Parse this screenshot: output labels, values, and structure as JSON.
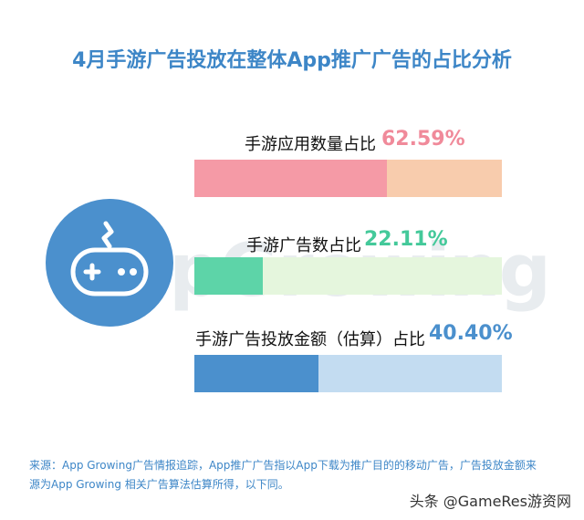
{
  "title": "4月手游广告投放在整体App推广广告的占比分析",
  "watermark": "AppGrowing",
  "colors": {
    "title": "#3d86c7",
    "icon": "#4b90cd"
  },
  "chart_data": {
    "type": "bar",
    "orientation": "horizontal",
    "xlim": [
      0,
      100
    ],
    "items": [
      {
        "label": "手游应用数量占比",
        "value": 62.59,
        "value_text": "62.59%",
        "fill": "#f59aa6",
        "track": "#f8ccad",
        "value_color": "#f08a9a"
      },
      {
        "label": "手游广告数占比",
        "value": 22.11,
        "value_text": "22.11%",
        "fill": "#5dd4a8",
        "track": "#e5f6dd",
        "value_color": "#44c99a"
      },
      {
        "label": "手游广告投放金额（估算）占比",
        "value": 40.4,
        "value_text": "40.40%",
        "fill": "#4b90cd",
        "track": "#c3dcf1",
        "value_color": "#4b90cd"
      }
    ]
  },
  "icon": {
    "name": "gamepad-icon"
  },
  "footnote": {
    "line1": "来源：App Growing广告情报追踪，App推广广告指以App下载为推广目的的移动广告，广告投放金额来",
    "line2": "源为App Growing 相关广告算法估算所得，以下同。"
  },
  "credit": "头条 @GameRes游资网"
}
